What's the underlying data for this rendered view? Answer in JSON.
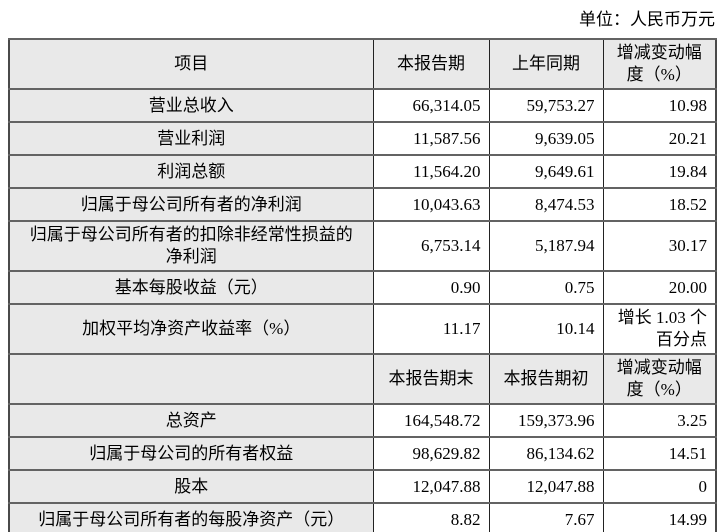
{
  "unit_label": "单位：人民币万元",
  "colors": {
    "background": "#ffffff",
    "cell_fill": "#e9e9e9",
    "grid_line": "#636363",
    "text": "#000000"
  },
  "table": {
    "columns": [
      "item",
      "current",
      "prior",
      "change"
    ],
    "sections": [
      {
        "header": {
          "item": "项目",
          "current": "本报告期",
          "prior": "上年同期",
          "change": "增减变动幅度（%）"
        },
        "rows": [
          {
            "label": "营业总收入",
            "current": "66,314.05",
            "prior": "59,753.27",
            "change": "10.98"
          },
          {
            "label": "营业利润",
            "current": "11,587.56",
            "prior": "9,639.05",
            "change": "20.21"
          },
          {
            "label": "利润总额",
            "current": "11,564.20",
            "prior": "9,649.61",
            "change": "19.84"
          },
          {
            "label": "归属于母公司所有者的净利润",
            "current": "10,043.63",
            "prior": "8,474.53",
            "change": "18.52"
          },
          {
            "label": "归属于母公司所有者的扣除非经常性损益的净利润",
            "current": "6,753.14",
            "prior": "5,187.94",
            "change": "30.17"
          },
          {
            "label": "基本每股收益（元）",
            "current": "0.90",
            "prior": "0.75",
            "change": "20.00"
          },
          {
            "label": "加权平均净资产收益率（%）",
            "current": "11.17",
            "prior": "10.14",
            "change": "增长 1.03 个百分点"
          }
        ]
      },
      {
        "header": {
          "item": "",
          "current": "本报告期末",
          "prior": "本报告期初",
          "change": "增减变动幅度（%）"
        },
        "rows": [
          {
            "label": "总资产",
            "current": "164,548.72",
            "prior": "159,373.96",
            "change": "3.25"
          },
          {
            "label": "归属于母公司的所有者权益",
            "current": "98,629.82",
            "prior": "86,134.62",
            "change": "14.51"
          },
          {
            "label": "股本",
            "current": "12,047.88",
            "prior": "12,047.88",
            "change": "0"
          },
          {
            "label": "归属于母公司所有者的每股净资产（元）",
            "current": "8.82",
            "prior": "7.67",
            "change": "14.99"
          }
        ]
      }
    ]
  }
}
